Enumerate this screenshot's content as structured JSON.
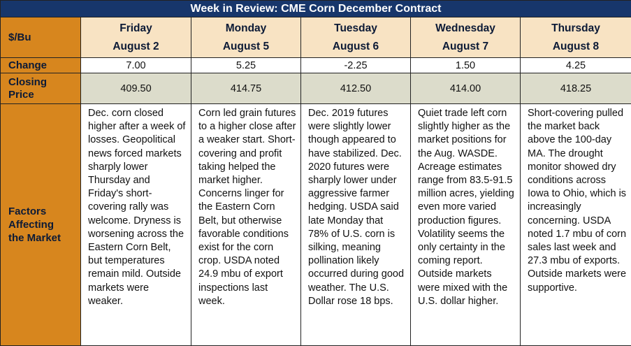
{
  "title": "Week in Review: CME Corn December Contract",
  "unit_label": "$/Bu",
  "days": [
    {
      "day": "Friday",
      "date": "August 2"
    },
    {
      "day": "Monday",
      "date": "August 5"
    },
    {
      "day": "Tuesday",
      "date": "August 6"
    },
    {
      "day": "Wednesday",
      "date": "August 7"
    },
    {
      "day": "Thursday",
      "date": "August 8"
    }
  ],
  "change_label": "Change",
  "changes": [
    "7.00",
    "5.25",
    "-2.25",
    "1.50",
    "4.25"
  ],
  "closing_label_line1": "Closing",
  "closing_label_line2": "Price",
  "closing_prices": [
    "409.50",
    "414.75",
    "412.50",
    "414.00",
    "418.25"
  ],
  "factors_label_line1": "Factors",
  "factors_label_line2": "Affecting",
  "factors_label_line3": "the Market",
  "factors": [
    "Dec. corn closed higher after a week of losses. Geopolitical news forced markets sharply lower Thursday and Friday's short-covering rally was welcome. Dryness is worsening across the Eastern Corn Belt, but temperatures remain mild. Outside markets were weaker.",
    "Corn led grain futures to a higher close after a weaker start. Short-covering and profit taking helped the market higher. Concerns linger for the Eastern Corn Belt, but otherwise favorable conditions exist for the corn crop. USDA noted 24.9 mbu of export inspections last week.",
    "Dec. 2019 futures were slightly lower though appeared to have stabilized. Dec. 2020 futures were sharply lower under aggressive farmer hedging. USDA said late Monday that 78% of U.S. corn is silking, meaning pollination likely occurred during good weather. The U.S. Dollar rose 18 bps.",
    "Quiet trade left corn slightly higher as the market positions for the Aug. WASDE. Acreage estimates range from 83.5-91.5 million acres, yielding even more varied production figures. Volatility seems the only certainty in the coming report. Outside markets were mixed with the U.S. dollar higher.",
    "Short-covering pulled the market back above the 100-day MA. The drought monitor showed dry conditions across Iowa to Ohio, which is increasingly concerning. USDA noted 1.7 mbu of corn sales last week and 27.3 mbu of exports. Outside markets were supportive."
  ]
}
